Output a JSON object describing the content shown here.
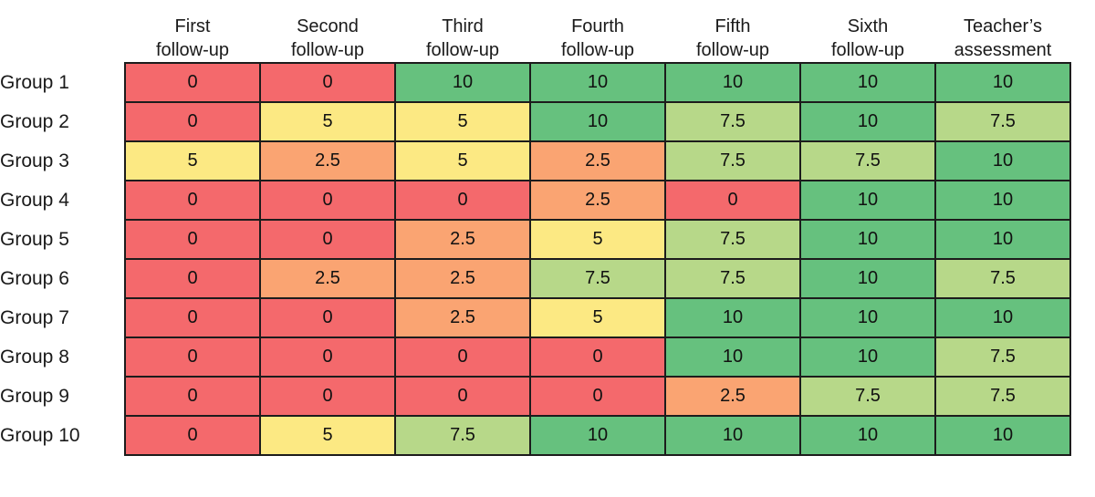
{
  "chart_data": {
    "type": "heatmap",
    "title": "",
    "columns": [
      {
        "line1": "First",
        "line2": "follow-up"
      },
      {
        "line1": "Second",
        "line2": "follow-up"
      },
      {
        "line1": "Third",
        "line2": "follow-up"
      },
      {
        "line1": "Fourth",
        "line2": "follow-up"
      },
      {
        "line1": "Fifth",
        "line2": "follow-up"
      },
      {
        "line1": "Sixth",
        "line2": "follow-up"
      },
      {
        "line1": "Teacher’s",
        "line2": "assessment"
      }
    ],
    "rows": [
      {
        "label": "Group 1",
        "values": [
          0,
          0,
          10,
          10,
          10,
          10,
          10
        ]
      },
      {
        "label": "Group 2",
        "values": [
          0,
          5,
          5,
          10,
          7.5,
          10,
          7.5
        ]
      },
      {
        "label": "Group 3",
        "values": [
          5,
          2.5,
          5,
          2.5,
          7.5,
          7.5,
          10
        ]
      },
      {
        "label": "Group 4",
        "values": [
          0,
          0,
          0,
          2.5,
          0,
          10,
          10
        ]
      },
      {
        "label": "Group 5",
        "values": [
          0,
          0,
          2.5,
          5,
          7.5,
          10,
          10
        ]
      },
      {
        "label": "Group 6",
        "values": [
          0,
          2.5,
          2.5,
          7.5,
          7.5,
          10,
          7.5
        ]
      },
      {
        "label": "Group 7",
        "values": [
          0,
          0,
          2.5,
          5,
          10,
          10,
          10
        ]
      },
      {
        "label": "Group 8",
        "values": [
          0,
          0,
          0,
          0,
          10,
          10,
          7.5
        ]
      },
      {
        "label": "Group 9",
        "values": [
          0,
          0,
          0,
          0,
          2.5,
          7.5,
          7.5
        ]
      },
      {
        "label": "Group 10",
        "values": [
          0,
          5,
          7.5,
          10,
          10,
          10,
          10
        ]
      }
    ],
    "value_range": [
      0,
      10
    ],
    "color_scale": {
      "0": "#F4696C",
      "2.5": "#FAA472",
      "5": "#FCE983",
      "7.5": "#B7D889",
      "10": "#66C17E"
    },
    "grid_border_color": "#1c1c1c",
    "legend_position": "none",
    "grid": "cell-borders"
  }
}
